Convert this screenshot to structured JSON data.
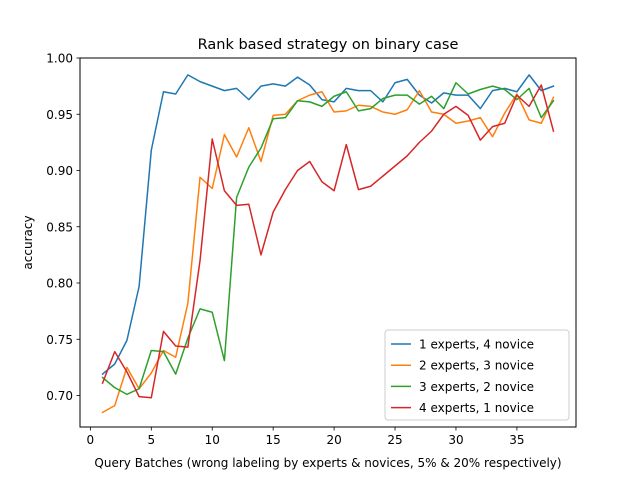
{
  "chart_data": {
    "type": "line",
    "title": "Rank based strategy on binary case",
    "xlabel": "Query Batches (wrong labeling by experts & novices, 5% & 20% respectively)",
    "ylabel": "accuracy",
    "xlim": [
      -0.85,
      39.85
    ],
    "ylim": [
      0.672,
      1.0
    ],
    "xticks": [
      0,
      5,
      10,
      15,
      20,
      25,
      30,
      35
    ],
    "yticks": [
      0.7,
      0.75,
      0.8,
      0.85,
      0.9,
      0.95,
      1.0
    ],
    "ytick_labels": [
      "0.70",
      "0.75",
      "0.80",
      "0.85",
      "0.90",
      "0.95",
      "1.00"
    ],
    "legend_position": "lower right",
    "grid": false,
    "x": [
      1,
      2,
      3,
      4,
      5,
      6,
      7,
      8,
      9,
      10,
      11,
      12,
      13,
      14,
      15,
      16,
      17,
      18,
      19,
      20,
      21,
      22,
      23,
      24,
      25,
      26,
      27,
      28,
      29,
      30,
      31,
      32,
      33,
      34,
      35,
      36,
      37,
      38
    ],
    "series": [
      {
        "name": "1 experts, 4 novice",
        "color": "#1f77b4",
        "values": [
          0.719,
          0.728,
          0.749,
          0.797,
          0.918,
          0.97,
          0.968,
          0.985,
          0.979,
          0.975,
          0.971,
          0.973,
          0.963,
          0.975,
          0.977,
          0.975,
          0.983,
          0.976,
          0.963,
          0.961,
          0.973,
          0.971,
          0.971,
          0.961,
          0.978,
          0.981,
          0.967,
          0.96,
          0.969,
          0.967,
          0.967,
          0.955,
          0.971,
          0.973,
          0.97,
          0.985,
          0.971,
          0.975
        ]
      },
      {
        "name": "2 experts, 3 novice",
        "color": "#ff7f0e",
        "values": [
          0.685,
          0.691,
          0.725,
          0.706,
          0.72,
          0.74,
          0.734,
          0.782,
          0.894,
          0.884,
          0.932,
          0.912,
          0.938,
          0.908,
          0.949,
          0.95,
          0.962,
          0.967,
          0.97,
          0.952,
          0.953,
          0.958,
          0.957,
          0.952,
          0.95,
          0.954,
          0.971,
          0.952,
          0.95,
          0.942,
          0.944,
          0.947,
          0.93,
          0.951,
          0.968,
          0.945,
          0.942,
          0.965
        ]
      },
      {
        "name": "3 experts, 2 novice",
        "color": "#2ca02c",
        "values": [
          0.716,
          0.707,
          0.701,
          0.706,
          0.74,
          0.739,
          0.719,
          0.751,
          0.777,
          0.774,
          0.731,
          0.876,
          0.903,
          0.92,
          0.946,
          0.947,
          0.962,
          0.961,
          0.957,
          0.966,
          0.97,
          0.953,
          0.955,
          0.964,
          0.967,
          0.967,
          0.959,
          0.966,
          0.955,
          0.978,
          0.968,
          0.972,
          0.975,
          0.972,
          0.963,
          0.973,
          0.947,
          0.962
        ]
      },
      {
        "name": "4 experts, 1 novice",
        "color": "#d62728",
        "values": [
          0.711,
          0.739,
          0.721,
          0.699,
          0.698,
          0.757,
          0.744,
          0.743,
          0.82,
          0.928,
          0.882,
          0.869,
          0.87,
          0.825,
          0.863,
          0.883,
          0.9,
          0.908,
          0.89,
          0.882,
          0.923,
          0.883,
          0.886,
          0.895,
          0.904,
          0.913,
          0.925,
          0.935,
          0.95,
          0.957,
          0.949,
          0.927,
          0.939,
          0.942,
          0.967,
          0.957,
          0.976,
          0.935
        ]
      }
    ]
  }
}
